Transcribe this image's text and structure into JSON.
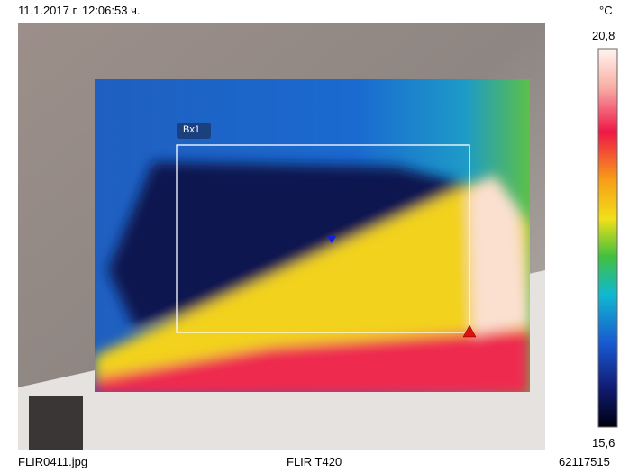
{
  "header": {
    "timestamp": "11.1.2017 г. 12:06:53 ч."
  },
  "scale": {
    "unit": "°C",
    "max": "20,8",
    "min": "15,6"
  },
  "overlay": {
    "box_label": "Bx1"
  },
  "footer": {
    "file": "FLIR0411.jpg",
    "camera": "FLIR T420",
    "serial": "62117515"
  }
}
